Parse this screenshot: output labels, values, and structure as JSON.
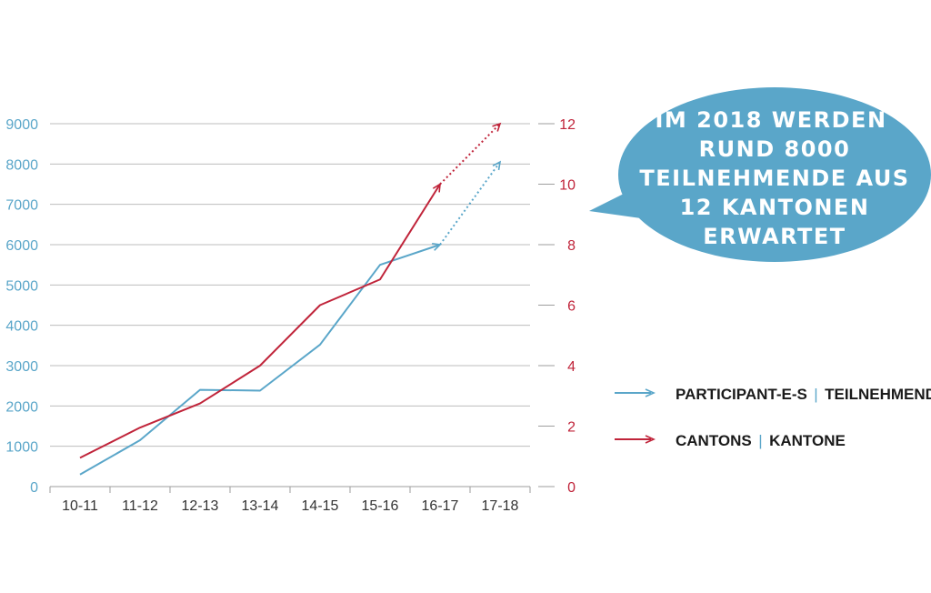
{
  "chart_data": {
    "type": "line",
    "categories": [
      "10-11",
      "11-12",
      "12-13",
      "13-14",
      "14-15",
      "15-16",
      "16-17",
      "17-18"
    ],
    "y_left": {
      "ylim": [
        0,
        9000
      ],
      "ticks": [
        0,
        1000,
        2000,
        3000,
        4000,
        5000,
        6000,
        7000,
        8000,
        9000
      ],
      "color": "#5aa6c9"
    },
    "y_right": {
      "ylim": [
        0,
        12
      ],
      "ticks": [
        0,
        2,
        4,
        6,
        8,
        10,
        12
      ],
      "color": "#c0243a"
    },
    "grid": true,
    "series": [
      {
        "name": "PARTICIPANT-E-S | TEILNEHMENDE",
        "axis": "left",
        "color": "#5aa6c9",
        "values": [
          300,
          1150,
          2400,
          2380,
          3520,
          5500,
          6000,
          8050
        ],
        "projected_from_index": 6
      },
      {
        "name": "CANTONS | KANTONE",
        "axis": "right",
        "color": "#c0243a",
        "values": [
          0.95,
          1.95,
          2.75,
          4,
          6,
          6.85,
          10,
          12
        ],
        "projected_from_index": 6
      }
    ],
    "legend_position": "right"
  },
  "legend": [
    {
      "part1": "PARTICIPANT-E-S",
      "sep": "|",
      "part2": "TEILNEHMENDE",
      "color": "#5aa6c9"
    },
    {
      "part1": "CANTONS",
      "sep": "|",
      "part2": "KANTONE",
      "color": "#c0243a"
    }
  ],
  "callout": {
    "lines": [
      "IM 2018 WERDEN",
      "RUND 8000",
      "TEILNEHMENDE AUS",
      "12 KANTONEN",
      "ERWARTET"
    ],
    "color": "#5aa6c9"
  }
}
